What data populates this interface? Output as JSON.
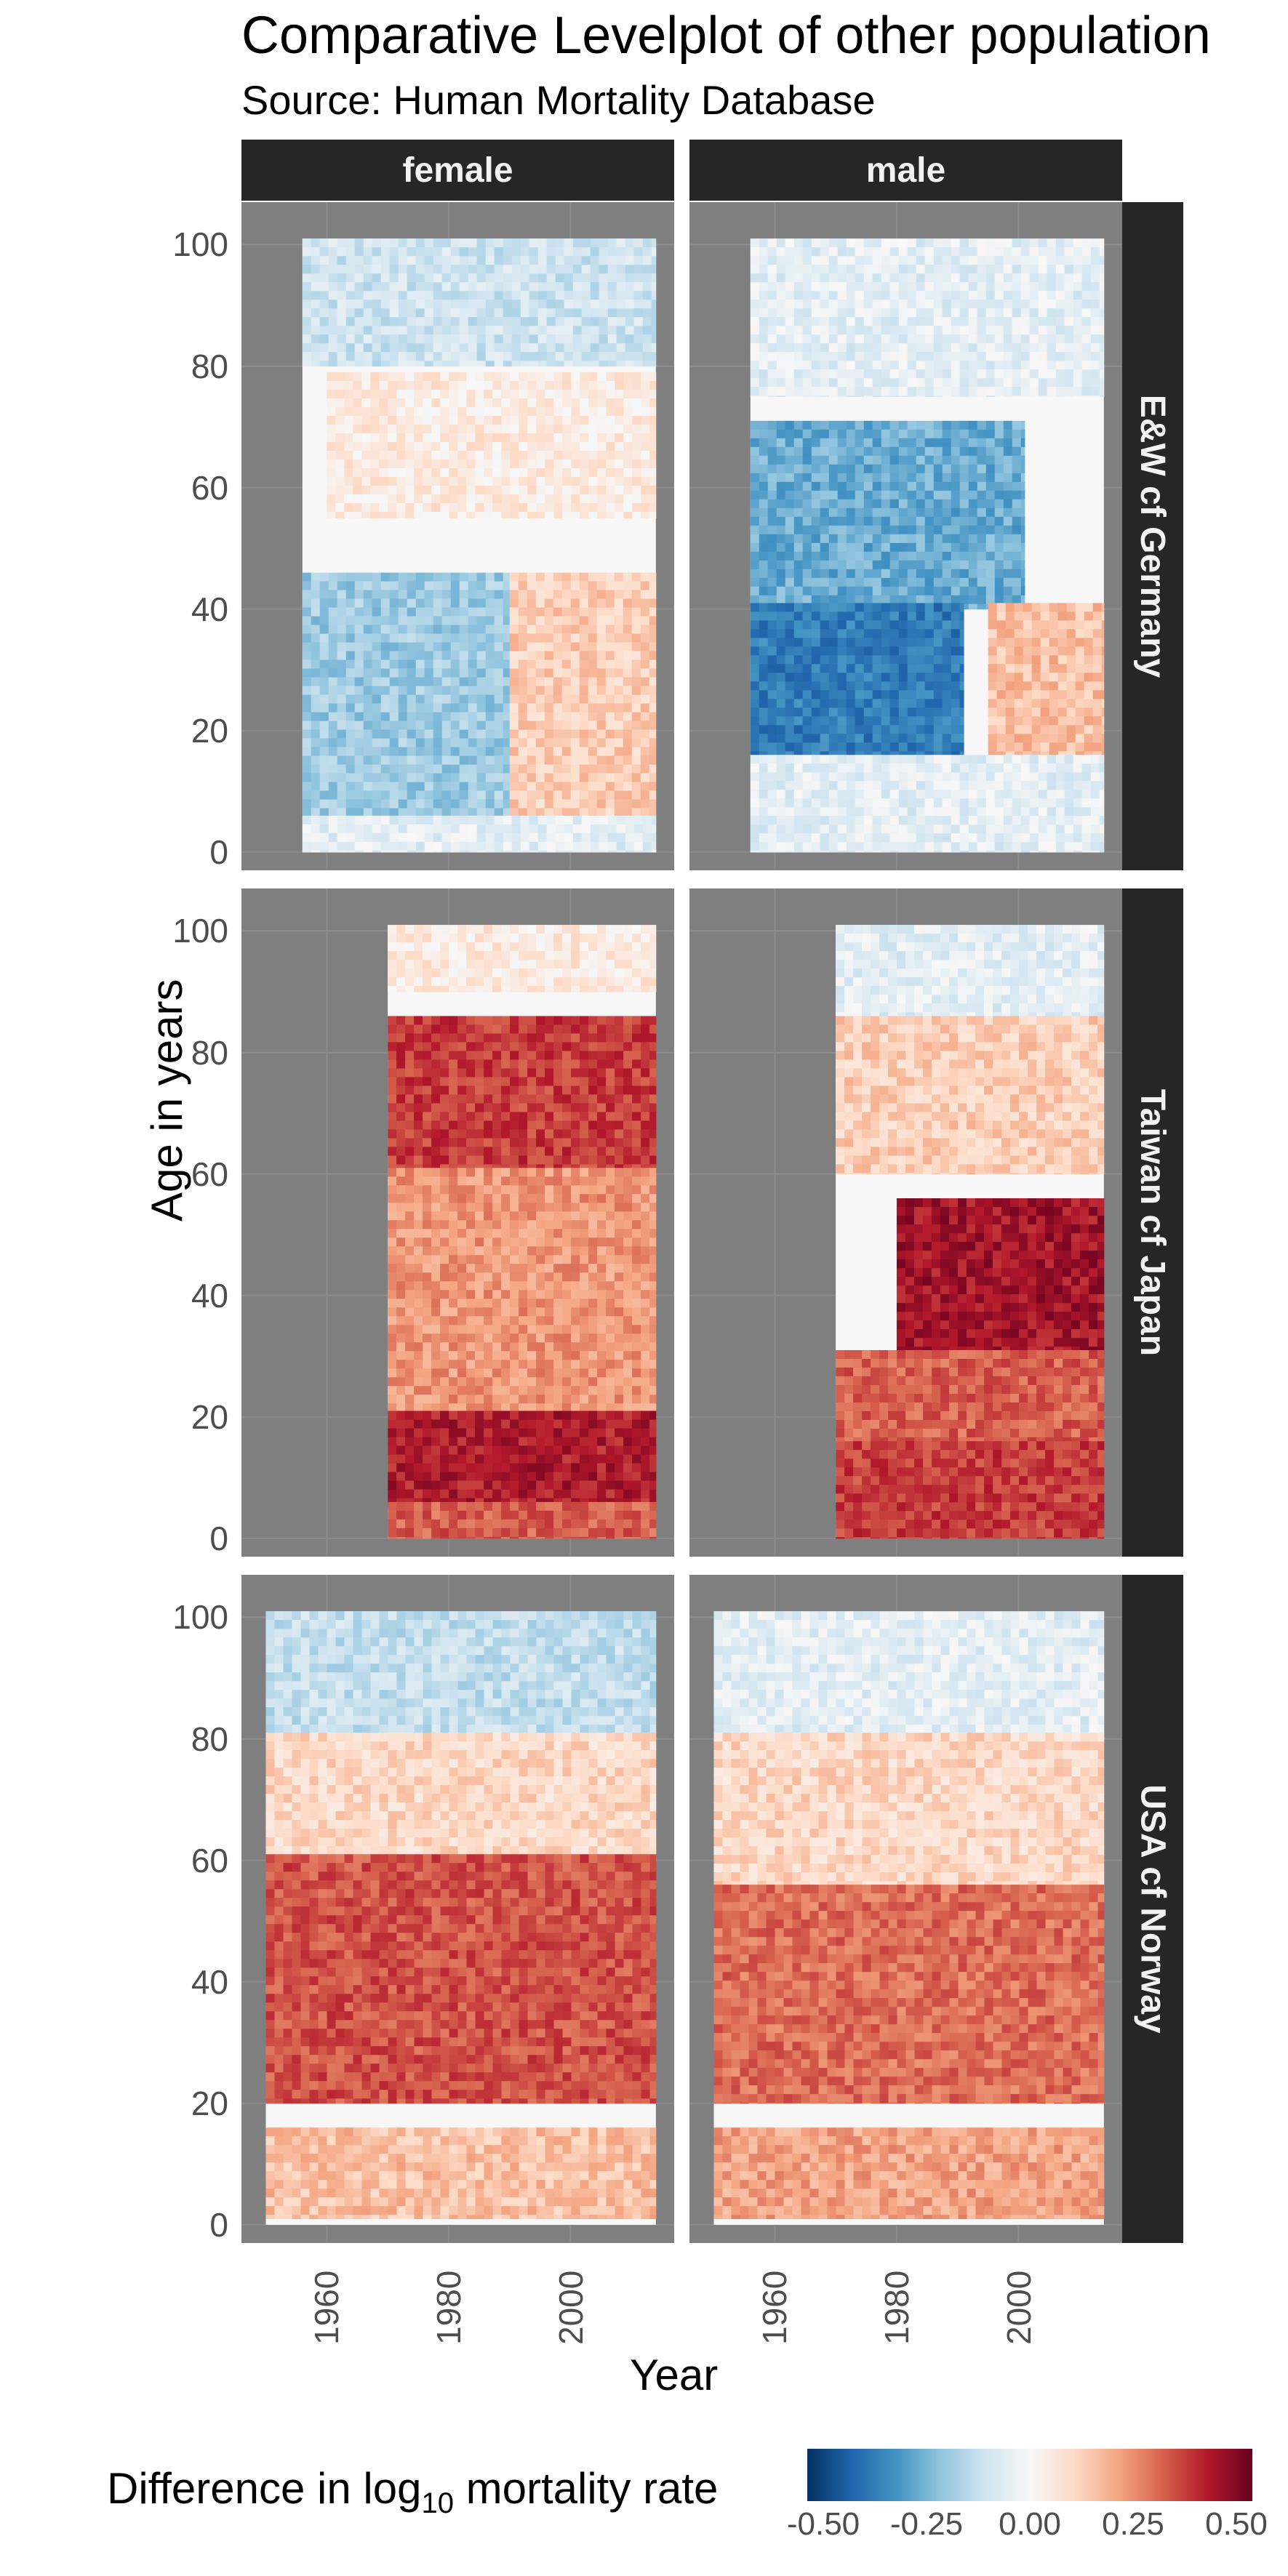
{
  "title": "Comparative Levelplot of other population",
  "subtitle": "Source: Human Mortality Database",
  "chart_data": {
    "type": "heatmap",
    "xlabel": "Year",
    "ylabel": "Age in years",
    "x_ticks": [
      1960,
      1980,
      2000
    ],
    "y_ticks": [
      0,
      20,
      40,
      60,
      80,
      100
    ],
    "xlim": [
      1946,
      2017
    ],
    "ylim": [
      -3,
      107
    ],
    "facet_columns": [
      "female",
      "male"
    ],
    "facet_rows": [
      "E&W cf Germany",
      "Taiwan cf Japan",
      "USA cf Norway"
    ],
    "legend": {
      "title": "Difference in log",
      "title_sub": "10",
      "title_suffix": " mortality rate",
      "ticks": [
        "-0.50",
        "-0.25",
        "0.00",
        "0.25",
        "0.50"
      ],
      "limits": [
        -0.5,
        0.5
      ],
      "placement": "bottom",
      "colors": [
        "#053061",
        "#2166ac",
        "#4393c3",
        "#92c5de",
        "#d1e5f0",
        "#f7f7f7",
        "#fddbc7",
        "#f4a582",
        "#d6604d",
        "#b2182b",
        "#67001f"
      ]
    },
    "panels": [
      {
        "row": "E&W cf Germany",
        "column": "female",
        "year_range": [
          1956,
          2013
        ],
        "age_range": [
          0,
          100
        ],
        "regions": [
          {
            "ages": [
              80,
              100
            ],
            "years": [
              1956,
              2013
            ],
            "value": -0.1
          },
          {
            "ages": [
              55,
              78
            ],
            "years": [
              1960,
              2013
            ],
            "value": 0.05
          },
          {
            "ages": [
              5,
              45
            ],
            "years": [
              1956,
              1990
            ],
            "value": -0.18
          },
          {
            "ages": [
              5,
              45
            ],
            "years": [
              1990,
              2013
            ],
            "value": 0.12
          },
          {
            "ages": [
              0,
              5
            ],
            "years": [
              1956,
              2013
            ],
            "value": -0.05
          }
        ]
      },
      {
        "row": "E&W cf Germany",
        "column": "male",
        "year_range": [
          1956,
          2013
        ],
        "age_range": [
          0,
          100
        ],
        "regions": [
          {
            "ages": [
              75,
              100
            ],
            "years": [
              1956,
              2013
            ],
            "value": -0.05
          },
          {
            "ages": [
              40,
              70
            ],
            "years": [
              1956,
              2000
            ],
            "value": -0.25
          },
          {
            "ages": [
              15,
              40
            ],
            "years": [
              1956,
              1990
            ],
            "value": -0.35
          },
          {
            "ages": [
              5,
              40
            ],
            "years": [
              1995,
              2013
            ],
            "value": 0.15
          },
          {
            "ages": [
              0,
              15
            ],
            "years": [
              1956,
              2013
            ],
            "value": -0.05
          }
        ]
      },
      {
        "row": "Taiwan cf Japan",
        "column": "female",
        "year_range": [
          1970,
          2013
        ],
        "age_range": [
          0,
          100
        ],
        "regions": [
          {
            "ages": [
              90,
              100
            ],
            "years": [
              1970,
              2013
            ],
            "value": 0.05
          },
          {
            "ages": [
              60,
              85
            ],
            "years": [
              1970,
              2013
            ],
            "value": 0.35
          },
          {
            "ages": [
              20,
              60
            ],
            "years": [
              1970,
              2013
            ],
            "value": 0.22
          },
          {
            "ages": [
              5,
              20
            ],
            "years": [
              1970,
              2013
            ],
            "value": 0.4
          },
          {
            "ages": [
              0,
              5
            ],
            "years": [
              1970,
              2013
            ],
            "value": 0.3
          }
        ]
      },
      {
        "row": "Taiwan cf Japan",
        "column": "male",
        "year_range": [
          1970,
          2013
        ],
        "age_range": [
          0,
          100
        ],
        "regions": [
          {
            "ages": [
              85,
              100
            ],
            "years": [
              1970,
              2013
            ],
            "value": -0.05
          },
          {
            "ages": [
              60,
              85
            ],
            "years": [
              1970,
              2013
            ],
            "value": 0.12
          },
          {
            "ages": [
              30,
              55
            ],
            "years": [
              1980,
              2013
            ],
            "value": 0.42
          },
          {
            "ages": [
              15,
              30
            ],
            "years": [
              1970,
              2013
            ],
            "value": 0.3
          },
          {
            "ages": [
              0,
              15
            ],
            "years": [
              1970,
              2013
            ],
            "value": 0.35
          }
        ]
      },
      {
        "row": "USA cf Norway",
        "column": "female",
        "year_range": [
          1950,
          2013
        ],
        "age_range": [
          0,
          100
        ],
        "regions": [
          {
            "ages": [
              80,
              100
            ],
            "years": [
              1950,
              2013
            ],
            "value": -0.12
          },
          {
            "ages": [
              60,
              80
            ],
            "years": [
              1950,
              2013
            ],
            "value": 0.1
          },
          {
            "ages": [
              20,
              60
            ],
            "years": [
              1950,
              2013
            ],
            "value": 0.32
          },
          {
            "ages": [
              1,
              15
            ],
            "years": [
              1950,
              2013
            ],
            "value": 0.15
          }
        ]
      },
      {
        "row": "USA cf Norway",
        "column": "male",
        "year_range": [
          1950,
          2013
        ],
        "age_range": [
          0,
          100
        ],
        "regions": [
          {
            "ages": [
              80,
              100
            ],
            "years": [
              1950,
              2013
            ],
            "value": -0.05
          },
          {
            "ages": [
              55,
              80
            ],
            "years": [
              1950,
              2013
            ],
            "value": 0.1
          },
          {
            "ages": [
              20,
              55
            ],
            "years": [
              1950,
              2013
            ],
            "value": 0.28
          },
          {
            "ages": [
              1,
              15
            ],
            "years": [
              1950,
              2013
            ],
            "value": 0.2
          }
        ]
      }
    ]
  }
}
